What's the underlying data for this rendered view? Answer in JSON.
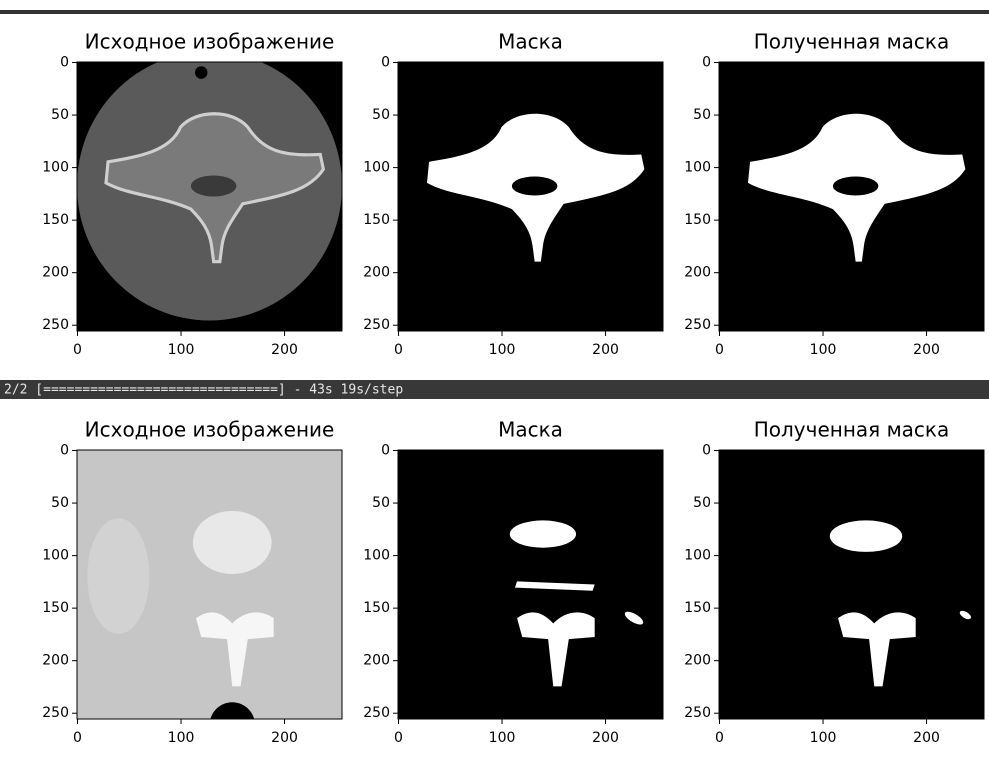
{
  "figures": [
    {
      "panels": [
        {
          "title": "Исходное изображение",
          "xlim": [
            -0.5,
            255.5
          ],
          "ylim": [
            255.5,
            -0.5
          ],
          "xticks": [
            0,
            100,
            200
          ],
          "yticks": [
            0,
            50,
            100,
            150,
            200,
            250
          ]
        },
        {
          "title": "Маска",
          "xlim": [
            -0.5,
            255.5
          ],
          "ylim": [
            255.5,
            -0.5
          ],
          "xticks": [
            0,
            100,
            200
          ],
          "yticks": [
            0,
            50,
            100,
            150,
            200,
            250
          ]
        },
        {
          "title": "Полученная маска",
          "xlim": [
            -0.5,
            255.5
          ],
          "ylim": [
            255.5,
            -0.5
          ],
          "xticks": [
            0,
            100,
            200
          ],
          "yticks": [
            0,
            50,
            100,
            150,
            200,
            250
          ]
        }
      ]
    },
    {
      "panels": [
        {
          "title": "Исходное изображение",
          "xlim": [
            -0.5,
            255.5
          ],
          "ylim": [
            255.5,
            -0.5
          ],
          "xticks": [
            0,
            100,
            200
          ],
          "yticks": [
            0,
            50,
            100,
            150,
            200,
            250
          ]
        },
        {
          "title": "Маска",
          "xlim": [
            -0.5,
            255.5
          ],
          "ylim": [
            255.5,
            -0.5
          ],
          "xticks": [
            0,
            100,
            200
          ],
          "yticks": [
            0,
            50,
            100,
            150,
            200,
            250
          ]
        },
        {
          "title": "Полученная маска",
          "xlim": [
            -0.5,
            255.5
          ],
          "ylim": [
            255.5,
            -0.5
          ],
          "xticks": [
            0,
            100,
            200
          ],
          "yticks": [
            0,
            50,
            100,
            150,
            200,
            250
          ]
        }
      ]
    }
  ],
  "progress": "2/2 [==============================] - 43s 19s/step"
}
